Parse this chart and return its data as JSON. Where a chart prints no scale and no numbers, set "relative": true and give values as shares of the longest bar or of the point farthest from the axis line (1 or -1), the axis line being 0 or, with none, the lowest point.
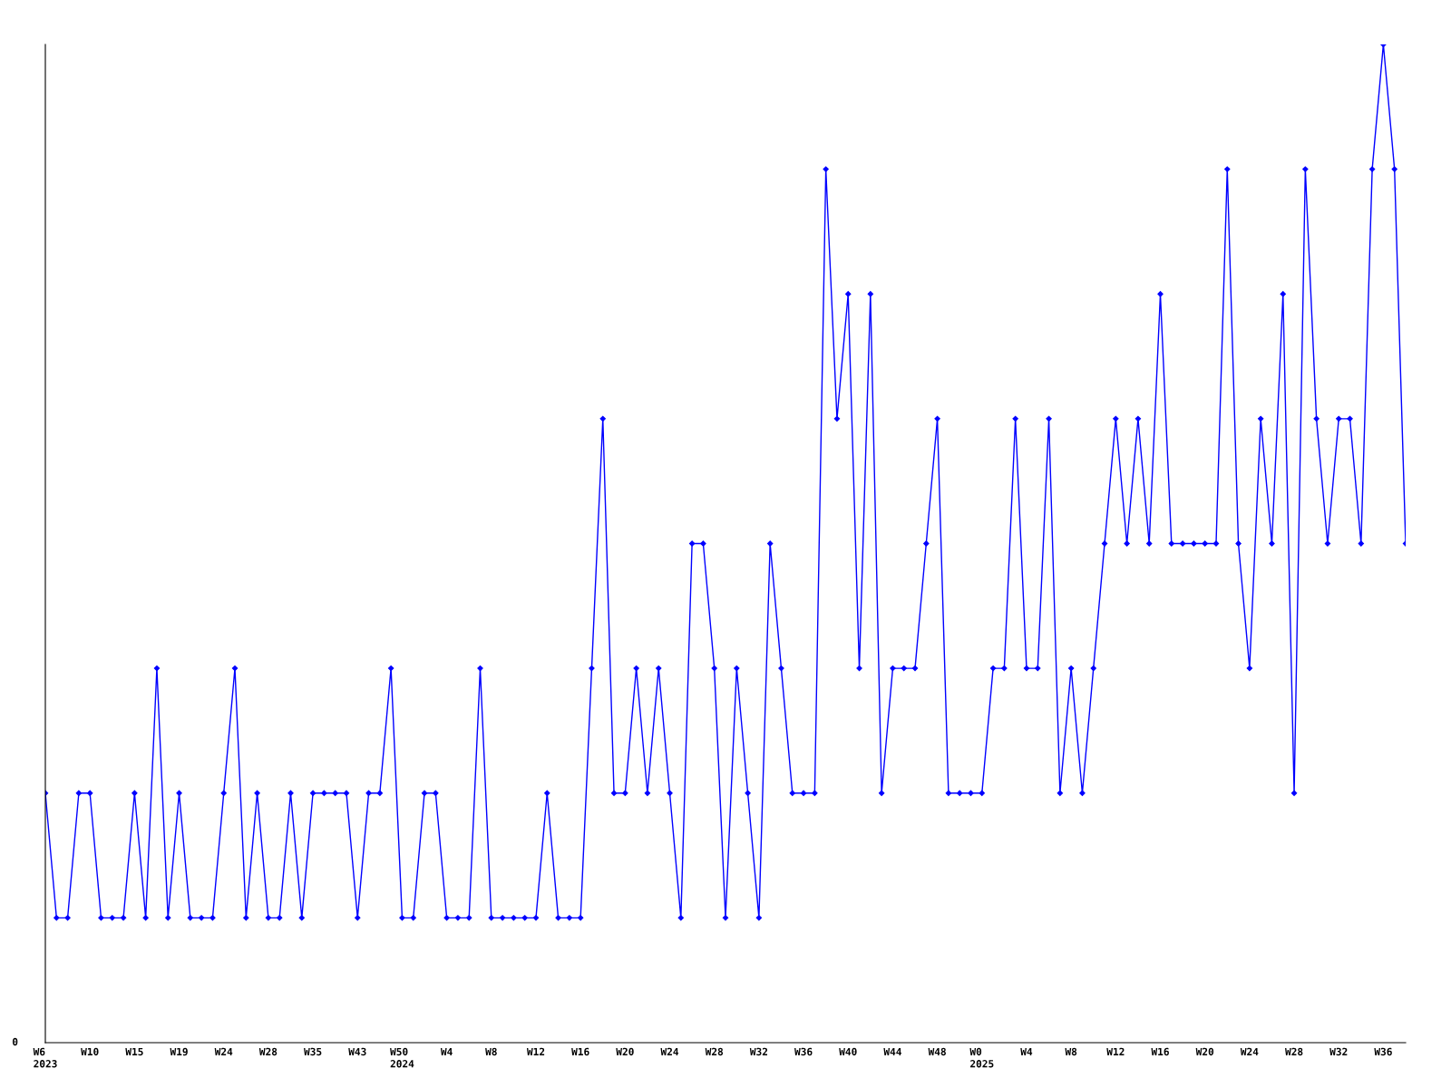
{
  "chart_data": {
    "type": "line",
    "relative": true,
    "categories": [
      "W6\n2023",
      null,
      null,
      null,
      "W10",
      null,
      null,
      null,
      "W15",
      null,
      null,
      null,
      "W19",
      null,
      null,
      null,
      "W24",
      null,
      null,
      null,
      "W28",
      null,
      null,
      null,
      "W35",
      null,
      null,
      null,
      "W43",
      null,
      null,
      null,
      "W50\n2024",
      null,
      null,
      null,
      "W4",
      null,
      null,
      null,
      "W8",
      null,
      null,
      null,
      "W12",
      null,
      null,
      null,
      "W16",
      null,
      null,
      null,
      "W20",
      null,
      null,
      null,
      "W24",
      null,
      null,
      null,
      "W28",
      null,
      null,
      null,
      "W32",
      null,
      null,
      null,
      "W36",
      null,
      null,
      null,
      "W40",
      null,
      null,
      null,
      "W44",
      null,
      null,
      null,
      "W48",
      null,
      null,
      null,
      "W0\n2025",
      null,
      null,
      null,
      "W4",
      null,
      null,
      null,
      "W8",
      null,
      null,
      null,
      "W12",
      null,
      null,
      null,
      "W16",
      null,
      null,
      null,
      "W20",
      null,
      null,
      null,
      "W24",
      null,
      null,
      null,
      "W28",
      null,
      null,
      null,
      "W32",
      null,
      null,
      null,
      "W36",
      null,
      null
    ],
    "series": [
      {
        "color": "#0000ff",
        "values": [
          0.25,
          0.125,
          0.125,
          0.25,
          0.25,
          0.125,
          0.125,
          0.125,
          0.25,
          0.125,
          0.375,
          0.125,
          0.25,
          0.125,
          0.125,
          0.125,
          0.25,
          0.375,
          0.125,
          0.25,
          0.125,
          0.125,
          0.25,
          0.125,
          0.25,
          0.25,
          0.25,
          0.25,
          0.125,
          0.25,
          0.25,
          0.375,
          0.125,
          0.125,
          0.25,
          0.25,
          0.125,
          0.125,
          0.125,
          0.375,
          0.125,
          0.125,
          0.125,
          0.125,
          0.125,
          0.25,
          0.125,
          0.125,
          0.125,
          0.375,
          0.625,
          0.25,
          0.25,
          0.375,
          0.25,
          0.375,
          0.25,
          0.125,
          0.5,
          0.5,
          0.375,
          0.125,
          0.375,
          0.25,
          0.125,
          0.5,
          0.375,
          0.25,
          0.25,
          0.25,
          0.875,
          0.625,
          0.75,
          0.375,
          0.75,
          0.25,
          0.375,
          0.375,
          0.375,
          0.5,
          0.625,
          0.25,
          0.25,
          0.25,
          0.25,
          0.375,
          0.375,
          0.625,
          0.375,
          0.375,
          0.625,
          0.25,
          0.375,
          0.25,
          0.375,
          0.5,
          0.625,
          0.5,
          0.625,
          0.5,
          0.75,
          0.5,
          0.5,
          0.5,
          0.5,
          0.5,
          0.875,
          0.5,
          0.375,
          0.625,
          0.5,
          0.75,
          0.25,
          0.875,
          0.625,
          0.5,
          0.625,
          0.625,
          0.5,
          0.875,
          1,
          0.875,
          0.5
        ]
      }
    ],
    "marker": "diamond",
    "line_style": "solid",
    "grid": false,
    "legend": false,
    "annotations": [
      "0"
    ]
  }
}
